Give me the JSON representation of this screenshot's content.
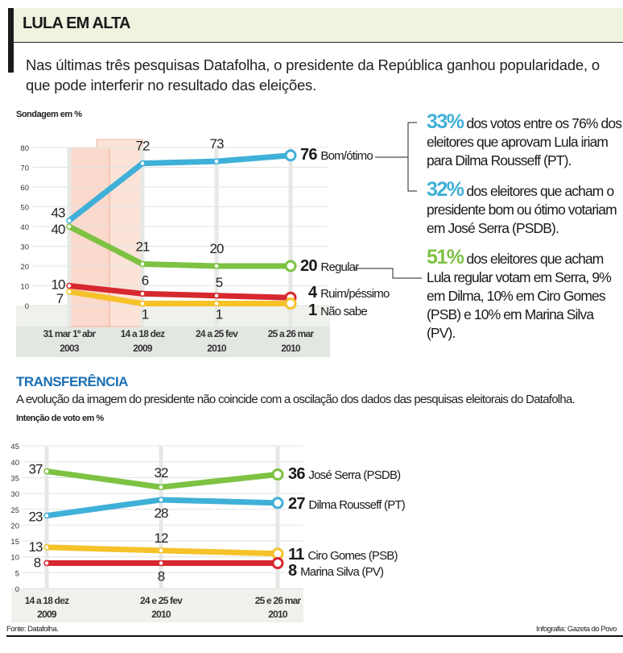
{
  "header": {
    "title": "LULA EM ALTA",
    "lede": "Nas últimas três pesquisas Datafolha, o presidente da República ganhou popularidade, o que pode interferir no resultado das eleições."
  },
  "notes": [
    {
      "pct": "33%",
      "text": " dos votos entre os 76% dos eleitores que aprovam Lula iriam para Dilma Rousseff (PT).",
      "color": "#3fb0d8"
    },
    {
      "pct": "32%",
      "text": " dos eleitores que acham o presidente bom ou ótimo votariam em José Serra (PSDB).",
      "color": "#3fb0d8"
    },
    {
      "pct": "51%",
      "text": " dos eleitores que acham Lula regular votam em Serra, 9% em Dilma, 10% em Ciro Gomes (PSB) e 10% em Marina Silva (PV).",
      "color": "#7dc242"
    }
  ],
  "section2": {
    "title": "TRANSFERÊNCIA",
    "subtitle": "A evolução da imagem do presidente não coincide com a oscilação dos dados das pesquisas eleitorais do Datafolha."
  },
  "footer": {
    "source": "Fonte: Datafolha.",
    "credit": "Infografia: Gazeta do Povo"
  },
  "chart_data": [
    {
      "type": "line",
      "title": "",
      "ylabel": "Sondagem em %",
      "ylim": [
        0,
        80
      ],
      "yticks": [
        0,
        10,
        20,
        30,
        40,
        50,
        60,
        70,
        80
      ],
      "grid": true,
      "categories": [
        [
          "31 mar 1º abr",
          "2003"
        ],
        [
          "14 a 18 dez",
          "2009"
        ],
        [
          "24 a 25 fev",
          "2010"
        ],
        [
          "25 a 26 mar",
          "2010"
        ]
      ],
      "series": [
        {
          "name": "Bom/ótimo",
          "values": [
            43,
            72,
            73,
            76
          ],
          "color": "#3fb0d8"
        },
        {
          "name": "Regular",
          "values": [
            40,
            21,
            20,
            20
          ],
          "color": "#7dc242"
        },
        {
          "name": "Ruim/péssimo",
          "values": [
            10,
            6,
            5,
            4
          ],
          "color": "#d7282f"
        },
        {
          "name": "Não sabe",
          "values": [
            7,
            1,
            1,
            1
          ],
          "color": "#f5c22a"
        }
      ]
    },
    {
      "type": "line",
      "title": "",
      "ylabel": "Intenção de voto em %",
      "ylim": [
        0,
        45
      ],
      "yticks": [
        0,
        5,
        10,
        15,
        20,
        25,
        30,
        35,
        40,
        45
      ],
      "grid": true,
      "categories": [
        [
          "14 a 18 dez",
          "2009"
        ],
        [
          "24 e 25 fev",
          "2010"
        ],
        [
          "25 e 26 mar",
          "2010"
        ]
      ],
      "series": [
        {
          "name": "José Serra (PSDB)",
          "values": [
            37,
            32,
            36
          ],
          "color": "#7dc242"
        },
        {
          "name": "Dilma Rousseff (PT)",
          "values": [
            23,
            28,
            27
          ],
          "color": "#3fb0d8"
        },
        {
          "name": "Ciro Gomes (PSB)",
          "values": [
            13,
            12,
            11
          ],
          "color": "#f5c22a"
        },
        {
          "name": "Marina Silva (PV)",
          "values": [
            8,
            8,
            8
          ],
          "color": "#d7282f"
        }
      ]
    }
  ]
}
